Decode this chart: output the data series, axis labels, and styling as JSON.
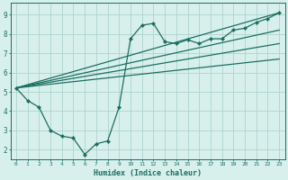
{
  "xlabel": "Humidex (Indice chaleur)",
  "bg_color": "#d8f0ec",
  "grid_color": "#aed4cc",
  "line_color": "#1a6e62",
  "spine_color": "#1a6e62",
  "xlim": [
    -0.5,
    23.5
  ],
  "ylim": [
    1.5,
    9.6
  ],
  "xticks": [
    0,
    1,
    2,
    3,
    4,
    5,
    6,
    7,
    8,
    9,
    10,
    11,
    12,
    13,
    14,
    15,
    16,
    17,
    18,
    19,
    20,
    21,
    22,
    23
  ],
  "yticks": [
    2,
    3,
    4,
    5,
    6,
    7,
    8,
    9
  ],
  "main_series": {
    "x": [
      0,
      1,
      2,
      3,
      4,
      5,
      6,
      7,
      8,
      9,
      10,
      11,
      12,
      13,
      14,
      15,
      16,
      17,
      18,
      19,
      20,
      21,
      22,
      23
    ],
    "y": [
      5.2,
      4.55,
      4.2,
      3.0,
      2.7,
      2.6,
      1.75,
      2.3,
      2.45,
      4.2,
      7.75,
      8.45,
      8.55,
      7.6,
      7.5,
      7.7,
      7.5,
      7.75,
      7.75,
      8.2,
      8.3,
      8.6,
      8.8,
      9.1
    ]
  },
  "straight_lines": [
    {
      "x": [
        0,
        23
      ],
      "y": [
        5.2,
        9.1
      ]
    },
    {
      "x": [
        0,
        23
      ],
      "y": [
        5.2,
        8.2
      ]
    },
    {
      "x": [
        0,
        23
      ],
      "y": [
        5.2,
        7.5
      ]
    },
    {
      "x": [
        0,
        23
      ],
      "y": [
        5.2,
        6.7
      ]
    }
  ]
}
